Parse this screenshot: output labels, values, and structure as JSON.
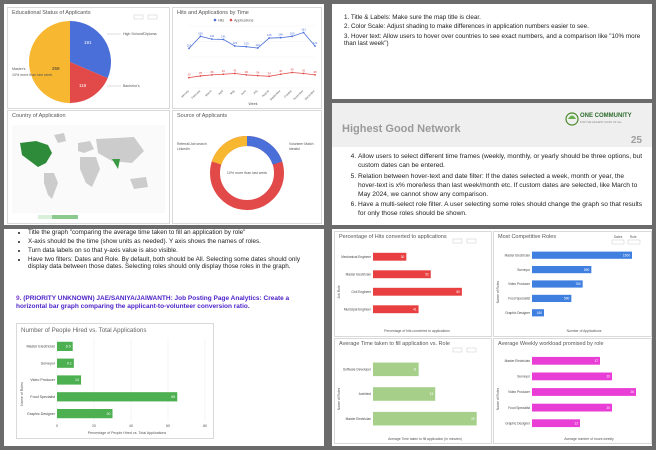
{
  "slide1": {
    "education_chart": {
      "title": "Educational Status of Applicants",
      "legend": [
        "High School/Diploma",
        "Bachelor's",
        "Master's",
        "10% more than last week"
      ],
      "slice_labels": [
        "191",
        "118",
        "259"
      ],
      "colors": [
        "#4a6fd8",
        "#e24a4a",
        "#f7b731"
      ]
    },
    "hits_chart": {
      "title": "Hits and Applications by Time",
      "legend_hits": "Hits",
      "legend_apps": "Applications",
      "xlabel": "Week",
      "months": [
        "January",
        "February",
        "March",
        "April",
        "May",
        "June",
        "July",
        "August",
        "September",
        "October",
        "November",
        "December"
      ],
      "hits": [
        115,
        150,
        142,
        141,
        122,
        120,
        116,
        145,
        146,
        150,
        161,
        122
      ],
      "apps": [
        30,
        35,
        38,
        40,
        42,
        38,
        36,
        34,
        40,
        45,
        42,
        38
      ]
    },
    "country_map": {
      "title": "Country of Application"
    },
    "source_chart": {
      "title": "Source of Applicants",
      "legend": [
        "Referral/Job search",
        "LinkedIn",
        "Volunteer Match",
        "Idealist"
      ],
      "center_text": "10% more than last week",
      "colors": [
        "#4a6fd8",
        "#e24a4a",
        "#f7b731"
      ]
    }
  },
  "slide2": {
    "notes": [
      "1.  Title & Labels: Make sure the map title is clear.",
      "2.  Color Scale: Adjust shading to make differences in application numbers easier to see.",
      "3.  Hover text: Allow users to hover over countries to see exact numbers, and a comparison like \"10% more than last week\")"
    ]
  },
  "slide3": {
    "title": "Highest Good Network",
    "page_number": "25",
    "logo_text": "ONE COMMUNITY",
    "logo_tagline": "FOR THE HIGHEST GOOD OF ALL",
    "items": [
      "Allow users to select different time frames (weekly, monthly, or yearly should be three options, but custom dates can be entered.",
      "Relation between hover-text and date filter: If the dates selected a week, month or year, the hover-text is x% more/less than last week/month etc. If custom dates are selected, like March to May 2024, we cannot show any comparison.",
      "Have a multi-select role filter. A user selecting some roles should change the graph so that results for only those roles should be shown."
    ]
  },
  "slide4": {
    "bullets": [
      "Title the graph \"comparing the average time taken to fill an application by role\"",
      "X-axis should be the time (show units as needed). Y axis shows the names of roles.",
      "Turn data labels on so that y-axis value is also visible.",
      "Have two filters: Dates and Role. By default, both should be All. Selecting some dates should only display data between those dates. Selecting roles should only display those roles in the graph."
    ],
    "task_number": "9.",
    "task_text": "(PRIORITY UNKNOWN) JAE/SANIYA/JAIWANTH: Job Posting Page Analytics: Create a horizontal bar graph comparing the applicant-to-volunteer conversion ratio.",
    "chart": {
      "title": "Number of People Hired vs. Total Applications",
      "ylabel": "Name of Roles",
      "xlabel": "Percentage of People Hired vs. Total Applications",
      "categories": [
        "Master Electrician",
        "Surveyor",
        "Video Producer",
        "Food Specialist",
        "Graphic Designer"
      ],
      "values": [
        8.5,
        9.1,
        13,
        65,
        30
      ],
      "value_labels": [
        "8.5",
        "9.1",
        "13",
        "65",
        "30"
      ],
      "ticks": [
        "0",
        "20",
        "40",
        "60",
        "80"
      ],
      "color": "#4caf50"
    }
  },
  "slide5": {
    "hits_converted": {
      "title": "Percentage of Hits converted to applications",
      "ylabel": "Job Role",
      "xlabel": "Percentage of hits converted to applications",
      "categories": [
        "Mechanical Engineer",
        "Master Electrician",
        "Civil Engineer",
        "Municipal Engineer"
      ],
      "values": [
        30,
        52,
        80,
        41
      ],
      "value_labels": [
        "30",
        "52",
        "80",
        "41"
      ],
      "color": "#e84040"
    },
    "competitive_roles": {
      "title": "Most Competitive Roles",
      "ylabel": "Name of Roles",
      "xlabel": "Number of Applications",
      "categories": [
        "Master Electrician",
        "Surveyor",
        "Video Producer",
        "Food Specialist",
        "Graphic Designer"
      ],
      "values": [
        1500,
        890,
        760,
        590,
        180
      ],
      "value_labels": [
        "1500",
        "890",
        "760",
        "590",
        "180"
      ],
      "color": "#3f7fe0"
    },
    "avg_time": {
      "title": "Average Time taken to fill application vs. Role",
      "ylabel": "Name of Roles",
      "xlabel": "Average Time taken to fill application (in minutes)",
      "categories": [
        "Software Developer",
        "Architect",
        "Master Electrician"
      ],
      "values": [
        11,
        15,
        25
      ],
      "value_labels": [
        "11",
        "15",
        "25"
      ],
      "color": "#a6cf8a"
    },
    "avg_workload": {
      "title": "Average Weekly workload promised by role",
      "ylabel": "Name of Roles",
      "xlabel": "Average number of hours weekly",
      "categories": [
        "Master Electrician",
        "Surveyor",
        "Video Producer",
        "Food Specialist",
        "Graphic Designer"
      ],
      "values": [
        17,
        20,
        26,
        20,
        12
      ],
      "value_labels": [
        "17",
        "20",
        "26",
        "20",
        "12"
      ],
      "color": "#e83ed6"
    },
    "filter_labels": [
      "Dates",
      "Role"
    ]
  }
}
